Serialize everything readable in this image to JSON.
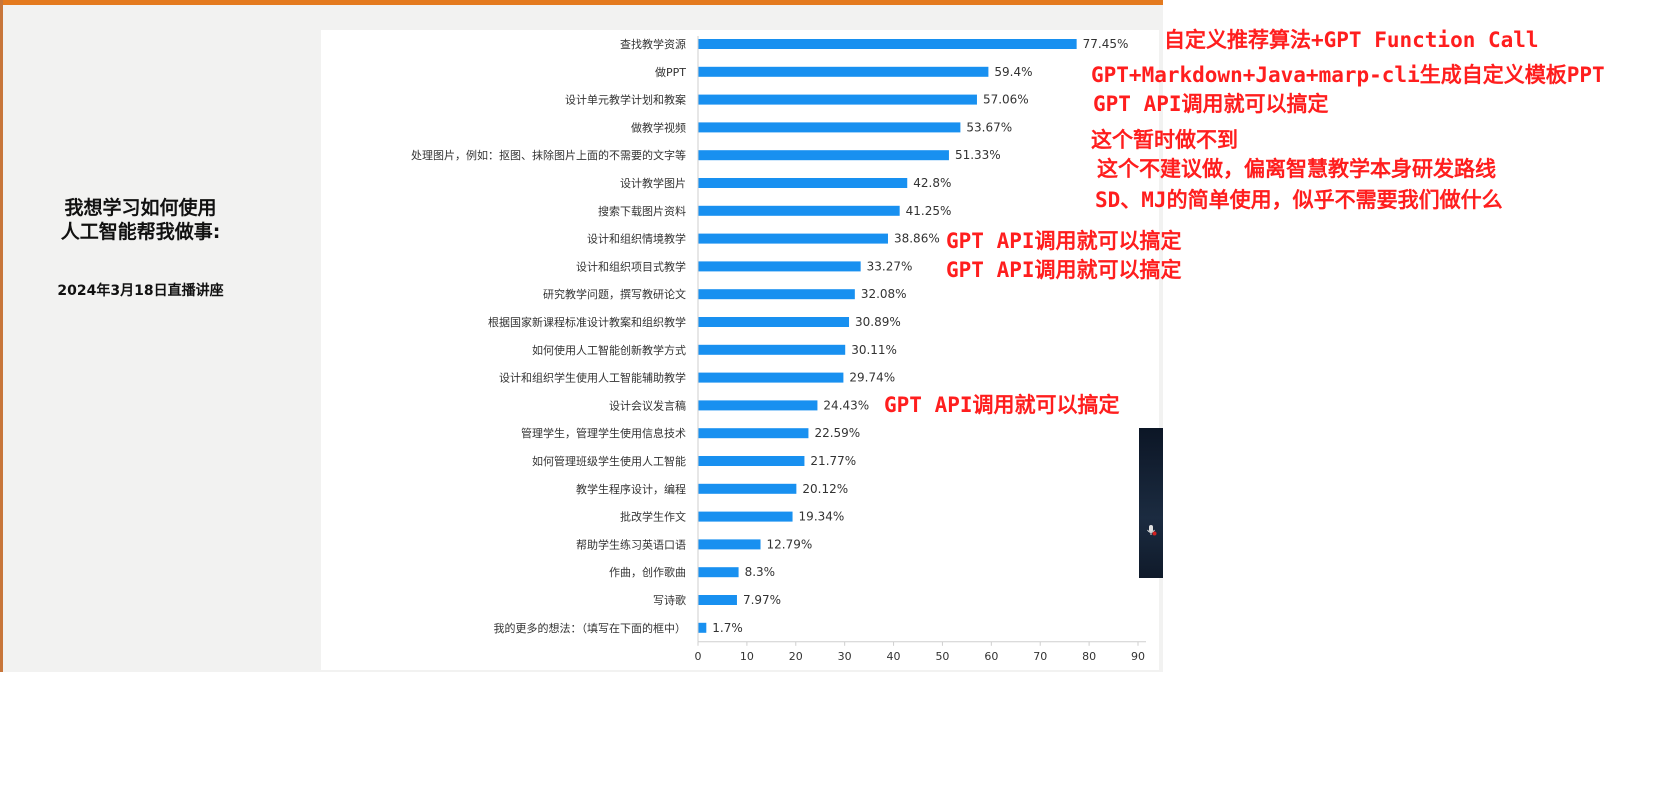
{
  "slide": {
    "title_line1": "我想学习如何使用",
    "title_line2": "人工智能帮我做事:",
    "subtitle": "2024年3月18日直播讲座"
  },
  "chart_data": {
    "type": "bar",
    "orientation": "horizontal",
    "categories": [
      "查找教学资源",
      "做PPT",
      "设计单元教学计划和教案",
      "做教学视频",
      "处理图片，例如：抠图、抹除图片上面的不需要的文字等",
      "设计教学图片",
      "搜索下载图片资料",
      "设计和组织情境教学",
      "设计和组织项目式教学",
      "研究教学问题，撰写教研论文",
      "根据国家新课程标准设计教案和组织教学",
      "如何使用人工智能创新教学方式",
      "设计和组织学生使用人工智能辅助教学",
      "设计会议发言稿",
      "管理学生，管理学生使用信息技术",
      "如何管理班级学生使用人工智能",
      "教学生程序设计，编程",
      "批改学生作文",
      "帮助学生练习英语口语",
      "作曲，创作歌曲",
      "写诗歌",
      "我的更多的想法：（填写在下面的框中）"
    ],
    "values": [
      77.45,
      59.4,
      57.06,
      53.67,
      51.33,
      42.8,
      41.25,
      38.86,
      33.27,
      32.08,
      30.89,
      30.11,
      29.74,
      24.43,
      22.59,
      21.77,
      20.12,
      19.34,
      12.79,
      8.3,
      7.97,
      1.7
    ],
    "value_labels": [
      "77.45%",
      "59.4%",
      "57.06%",
      "53.67%",
      "51.33%",
      "42.8%",
      "41.25%",
      "38.86%",
      "33.27%",
      "32.08%",
      "30.89%",
      "30.11%",
      "29.74%",
      "24.43%",
      "22.59%",
      "21.77%",
      "20.12%",
      "19.34%",
      "12.79%",
      "8.3%",
      "7.97%",
      "1.7%"
    ],
    "xlim": [
      0,
      90
    ],
    "xticks": [
      "0",
      "10",
      "20",
      "30",
      "40",
      "50",
      "60",
      "70",
      "80",
      "90"
    ],
    "bar_color": "#1890f0",
    "grid": false,
    "title": "",
    "xlabel": "",
    "ylabel": ""
  },
  "annotations": [
    "自定义推荐算法+GPT Function Call",
    "GPT+Markdown+Java+marp-cli生成自定义模板PPT",
    "GPT API调用就可以搞定",
    "这个暂时做不到",
    "这个不建议做，偏离智慧教学本身研发路线",
    "SD、MJ的简单使用，似乎不需要我们做什么",
    "GPT API调用就可以搞定",
    "GPT API调用就可以搞定",
    "GPT API调用就可以搞定"
  ],
  "colors": {
    "annotation": "#ff1e1e",
    "slide_accent": "#e47a1f",
    "bar": "#1890f0"
  }
}
